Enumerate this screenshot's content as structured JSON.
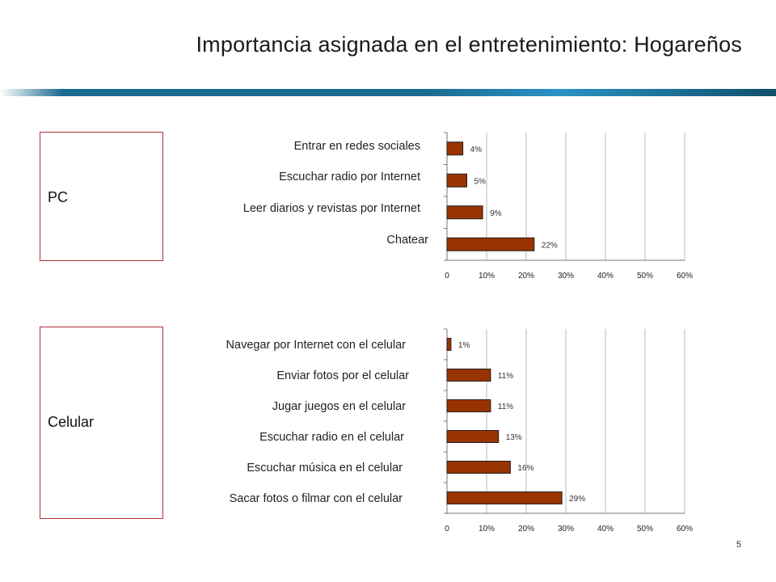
{
  "title": "Importancia asignada en el entretenimiento: Hogareños",
  "page_number": "5",
  "colors": {
    "bar_fill": "#993300",
    "bar_stroke": "#222222",
    "box_border": "#b0313a",
    "accent_bar": "#1b6a8f"
  },
  "chart_data": [
    {
      "type": "bar",
      "orientation": "horizontal",
      "group_label": "PC",
      "categories": [
        "Entrar en redes sociales",
        "Escuchar radio por Internet",
        "Leer diarios y revistas por Internet",
        "Chatear"
      ],
      "values": [
        4,
        5,
        9,
        22
      ],
      "value_labels": [
        "4%",
        "5%",
        "9%",
        "22%"
      ],
      "xlim": [
        0,
        60
      ],
      "xticks": [
        "0",
        "10%",
        "20%",
        "30%",
        "40%",
        "50%",
        "60%"
      ],
      "grid": true
    },
    {
      "type": "bar",
      "orientation": "horizontal",
      "group_label": "Celular",
      "categories": [
        "Navegar por Internet con el celular",
        "Enviar fotos por el celular",
        "Jugar juegos en el celular",
        "Escuchar radio en el celular",
        "Escuchar música en el celular",
        "Sacar fotos o filmar con el celular"
      ],
      "values": [
        1,
        11,
        11,
        13,
        16,
        29
      ],
      "value_labels": [
        "1%",
        "11%",
        "11%",
        "13%",
        "16%",
        "29%"
      ],
      "xlim": [
        0,
        60
      ],
      "xticks": [
        "0",
        "10%",
        "20%",
        "30%",
        "40%",
        "50%",
        "60%"
      ],
      "grid": true
    }
  ]
}
